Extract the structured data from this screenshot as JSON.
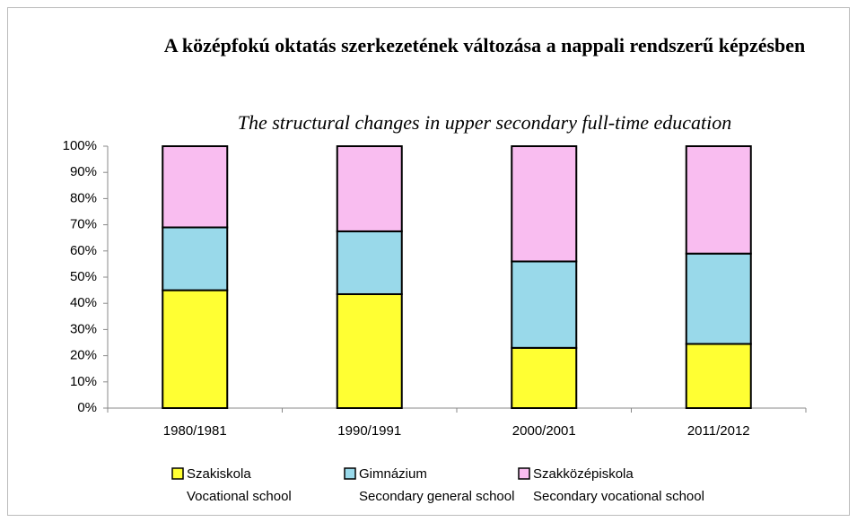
{
  "chart_data": {
    "type": "stacked_bar",
    "title": "A középfokú oktatás szerkezetének változása a nappali rendszerű képzésben",
    "subtitle": "The structural changes in upper secondary full-time education",
    "categories": [
      "1980/1981",
      "1990/1991",
      "2000/2001",
      "2011/2012"
    ],
    "series": [
      {
        "name": "Szakiskola",
        "name_en": "Vocational school",
        "color": "#ffff33",
        "values": [
          45,
          43.5,
          23,
          24.5
        ]
      },
      {
        "name": "Gimnázium",
        "name_en": "Secondary general school",
        "color": "#99d9ea",
        "values": [
          24,
          24,
          33,
          34.5
        ]
      },
      {
        "name": "Szakközépiskola",
        "name_en": "Secondary vocational school",
        "color": "#f9bdf0",
        "values": [
          31,
          32.5,
          44,
          41
        ]
      }
    ],
    "ylim": [
      0,
      100
    ],
    "yticks": [
      {
        "value": 0,
        "label": "0%"
      },
      {
        "value": 10,
        "label": "10%"
      },
      {
        "value": 20,
        "label": "20%"
      },
      {
        "value": 30,
        "label": "30%"
      },
      {
        "value": 40,
        "label": "40%"
      },
      {
        "value": 50,
        "label": "50%"
      },
      {
        "value": 60,
        "label": "60%"
      },
      {
        "value": 70,
        "label": "70%"
      },
      {
        "value": 80,
        "label": "80%"
      },
      {
        "value": 90,
        "label": "90%"
      },
      {
        "value": 100,
        "label": "100%"
      }
    ],
    "legend": "bottom"
  }
}
